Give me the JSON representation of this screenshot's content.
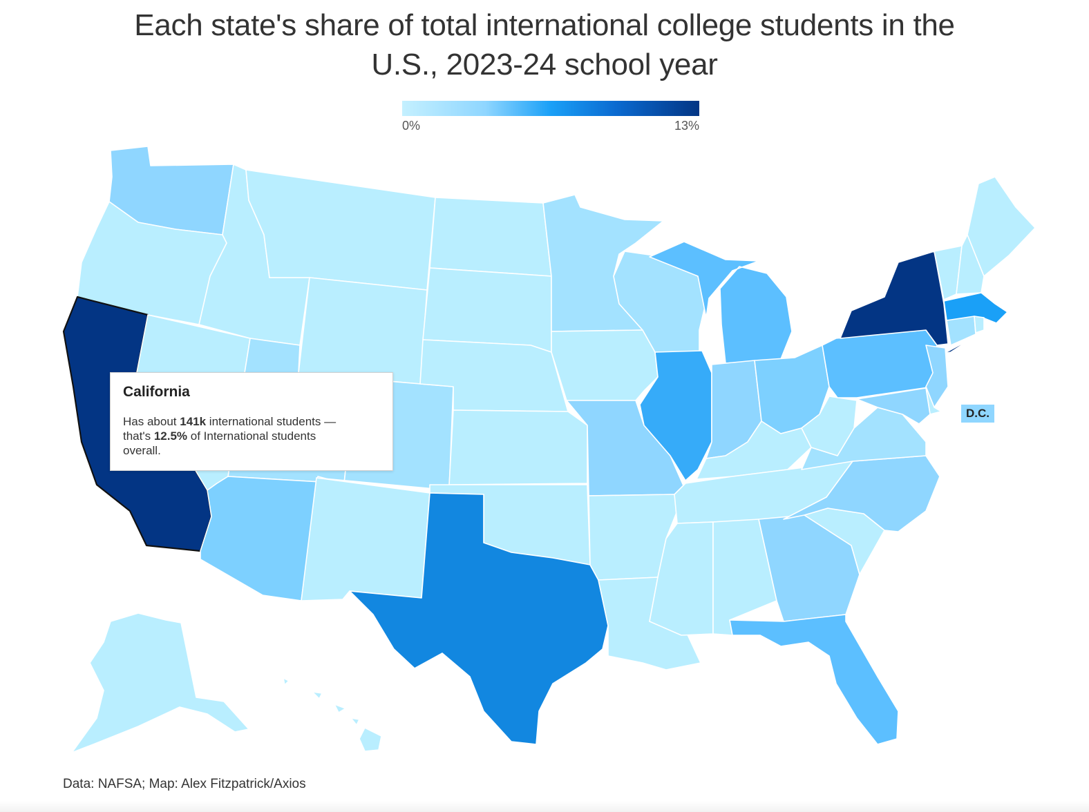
{
  "title_line1": "Each state's share of total international college students in the",
  "title_line2": "U.S., 2023-24 school year",
  "legend": {
    "min_label": "0%",
    "max_label": "13%",
    "min_color": "#c4f0ff",
    "max_color": "#033584"
  },
  "tooltip": {
    "state": "California",
    "line1_prefix": "Has about ",
    "line1_value": "141k",
    "line1_suffix": " international students —",
    "line2_prefix": "that's ",
    "line2_value": "12.5%",
    "line2_suffix": " of International students",
    "line3": "overall."
  },
  "dc_label": "D.C.",
  "source": "Data: NAFSA; Map: Alex Fitzpatrick/Axios",
  "colors": {
    "lightest": "#b9eeff",
    "light": "#a3e2ff",
    "light_medium": "#8fd6ff",
    "medium": "#7dd0ff",
    "medium_strong": "#5cbfff",
    "strong": "#36abf9",
    "texas_blue": "#1287e0",
    "darkest": "#033584"
  },
  "states": [
    {
      "id": "WA",
      "color": "#8fd6ff"
    },
    {
      "id": "OR",
      "color": "#b9eeff"
    },
    {
      "id": "CA",
      "color": "#033584",
      "selected": true
    },
    {
      "id": "NV",
      "color": "#b9eeff"
    },
    {
      "id": "ID",
      "color": "#b9eeff"
    },
    {
      "id": "MT",
      "color": "#b9eeff"
    },
    {
      "id": "WY",
      "color": "#b9eeff"
    },
    {
      "id": "UT",
      "color": "#a3e2ff"
    },
    {
      "id": "AZ",
      "color": "#7dd0ff"
    },
    {
      "id": "CO",
      "color": "#a3e2ff"
    },
    {
      "id": "NM",
      "color": "#b9eeff"
    },
    {
      "id": "ND",
      "color": "#b9eeff"
    },
    {
      "id": "SD",
      "color": "#b9eeff"
    },
    {
      "id": "NE",
      "color": "#b9eeff"
    },
    {
      "id": "KS",
      "color": "#b9eeff"
    },
    {
      "id": "OK",
      "color": "#b9eeff"
    },
    {
      "id": "TX",
      "color": "#1287e0"
    },
    {
      "id": "MN",
      "color": "#a3e2ff"
    },
    {
      "id": "IA",
      "color": "#b9eeff"
    },
    {
      "id": "MO",
      "color": "#8fd6ff"
    },
    {
      "id": "AR",
      "color": "#b9eeff"
    },
    {
      "id": "LA",
      "color": "#b9eeff"
    },
    {
      "id": "WI",
      "color": "#a3e2ff"
    },
    {
      "id": "IL",
      "color": "#36abf9"
    },
    {
      "id": "MI",
      "color": "#5cbfff"
    },
    {
      "id": "IN",
      "color": "#8fd6ff"
    },
    {
      "id": "OH",
      "color": "#7dd0ff"
    },
    {
      "id": "KY",
      "color": "#b9eeff"
    },
    {
      "id": "TN",
      "color": "#b9eeff"
    },
    {
      "id": "MS",
      "color": "#b9eeff"
    },
    {
      "id": "AL",
      "color": "#b9eeff"
    },
    {
      "id": "GA",
      "color": "#8fd6ff"
    },
    {
      "id": "FL",
      "color": "#5cbfff"
    },
    {
      "id": "SC",
      "color": "#b9eeff"
    },
    {
      "id": "NC",
      "color": "#8fd6ff"
    },
    {
      "id": "VA",
      "color": "#a3e2ff"
    },
    {
      "id": "WV",
      "color": "#b9eeff"
    },
    {
      "id": "PA",
      "color": "#5cbfff"
    },
    {
      "id": "NY",
      "color": "#033584"
    },
    {
      "id": "VT",
      "color": "#b9eeff"
    },
    {
      "id": "NH",
      "color": "#b9eeff"
    },
    {
      "id": "ME",
      "color": "#b9eeff"
    },
    {
      "id": "MA",
      "color": "#1aa0f7"
    },
    {
      "id": "CT",
      "color": "#a3e2ff"
    },
    {
      "id": "RI",
      "color": "#b9eeff"
    },
    {
      "id": "NJ",
      "color": "#8fd6ff"
    },
    {
      "id": "DE",
      "color": "#b9eeff"
    },
    {
      "id": "MD",
      "color": "#8fd6ff"
    },
    {
      "id": "AK",
      "color": "#b9eeff"
    },
    {
      "id": "HI",
      "color": "#b9eeff"
    }
  ]
}
